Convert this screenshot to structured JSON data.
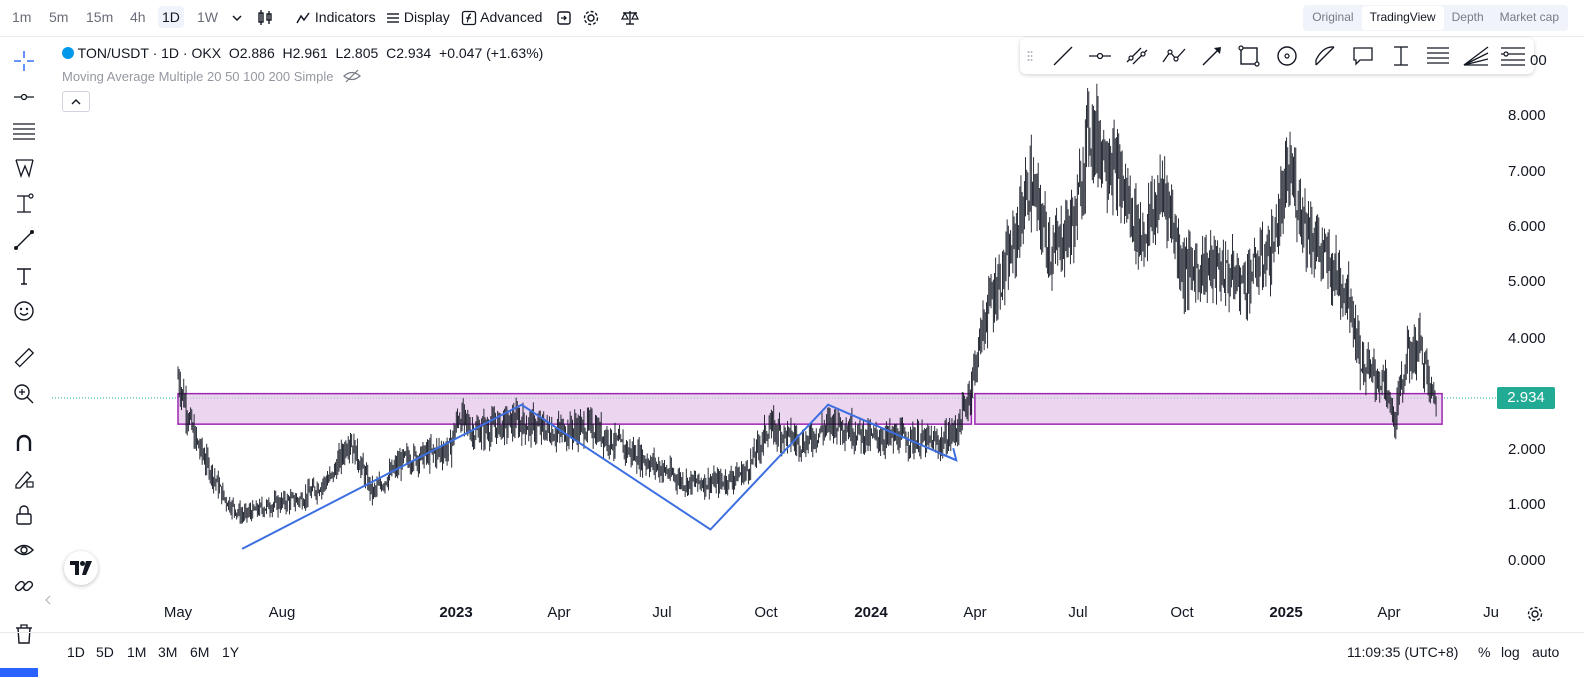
{
  "toolbar": {
    "intervals": [
      "1m",
      "5m",
      "15m",
      "4h",
      "1D",
      "1W"
    ],
    "active_interval": "1D",
    "indicators_label": "Indicators",
    "display_label": "Display",
    "advanced_label": "Advanced"
  },
  "view_tabs": [
    "Original",
    "TradingView",
    "Depth",
    "Market cap"
  ],
  "active_view": "TradingView",
  "legend": {
    "symbol": "TON/USDT · 1D · OKX",
    "open": "O2.886",
    "high": "H2.961",
    "low": "L2.805",
    "close": "C2.934",
    "change": "+0.047 (+1.63%)",
    "indicator": "Moving Average Multiple 20 50 100 200 Simple"
  },
  "price_axis": [
    "8.000",
    "7.000",
    "6.000",
    "5.000",
    "4.000",
    "2.000",
    "1.000",
    "0.000"
  ],
  "price_axis_partial_top": "00",
  "current_price": "2.934",
  "time_axis": [
    {
      "label": "May",
      "bold": false
    },
    {
      "label": "Aug",
      "bold": false
    },
    {
      "label": "2023",
      "bold": true
    },
    {
      "label": "Apr",
      "bold": false
    },
    {
      "label": "Jul",
      "bold": false
    },
    {
      "label": "Oct",
      "bold": false
    },
    {
      "label": "2024",
      "bold": true
    },
    {
      "label": "Apr",
      "bold": false
    },
    {
      "label": "Jul",
      "bold": false
    },
    {
      "label": "Oct",
      "bold": false
    },
    {
      "label": "2025",
      "bold": true
    },
    {
      "label": "Apr",
      "bold": false
    },
    {
      "label": "Ju",
      "bold": false
    }
  ],
  "bottom": {
    "ranges": [
      "1D",
      "5D",
      "1M",
      "3M",
      "6M",
      "1Y"
    ],
    "clock": "11:09:35 (UTC+8)",
    "percent_label": "%",
    "log_label": "log",
    "auto_label": "auto"
  },
  "chart_data": {
    "type": "candlestick",
    "y_range": [
      0,
      8.3
    ],
    "current_price": 2.934,
    "approx_path": [
      [
        "2022-05-01",
        3.3
      ],
      [
        "2022-05-15",
        2.2
      ],
      [
        "2022-06-10",
        1.1
      ],
      [
        "2022-06-25",
        0.8
      ],
      [
        "2022-07-20",
        1.0
      ],
      [
        "2022-08-15",
        1.1
      ],
      [
        "2022-09-10",
        1.5
      ],
      [
        "2022-09-25",
        2.2
      ],
      [
        "2022-10-15",
        1.2
      ],
      [
        "2022-11-10",
        1.8
      ],
      [
        "2022-12-20",
        2.0
      ],
      [
        "2022-12-28",
        2.6
      ],
      [
        "2023-01-10",
        2.3
      ],
      [
        "2023-02-15",
        2.5
      ],
      [
        "2023-03-20",
        2.3
      ],
      [
        "2023-04-20",
        2.4
      ],
      [
        "2023-05-20",
        2.0
      ],
      [
        "2023-06-15",
        1.7
      ],
      [
        "2023-07-10",
        1.4
      ],
      [
        "2023-08-10",
        1.4
      ],
      [
        "2023-09-01",
        1.6
      ],
      [
        "2023-09-20",
        2.4
      ],
      [
        "2023-10-20",
        2.1
      ],
      [
        "2023-11-15",
        2.5
      ],
      [
        "2023-12-15",
        2.2
      ],
      [
        "2024-01-15",
        2.2
      ],
      [
        "2024-02-15",
        2.1
      ],
      [
        "2024-03-01",
        2.4
      ],
      [
        "2024-03-10",
        3.0
      ],
      [
        "2024-03-25",
        4.5
      ],
      [
        "2024-04-15",
        5.5
      ],
      [
        "2024-05-01",
        6.8
      ],
      [
        "2024-05-20",
        5.5
      ],
      [
        "2024-06-10",
        6.2
      ],
      [
        "2024-06-20",
        7.8
      ],
      [
        "2024-07-10",
        7.2
      ],
      [
        "2024-08-05",
        5.8
      ],
      [
        "2024-08-25",
        6.7
      ],
      [
        "2024-09-10",
        5.2
      ],
      [
        "2024-10-05",
        5.3
      ],
      [
        "2024-11-01",
        5.0
      ],
      [
        "2024-11-25",
        5.6
      ],
      [
        "2024-12-10",
        7.0
      ],
      [
        "2024-12-25",
        6.0
      ],
      [
        "2025-01-10",
        5.4
      ],
      [
        "2025-01-30",
        4.8
      ],
      [
        "2025-02-10",
        3.5
      ],
      [
        "2025-03-01",
        3.2
      ],
      [
        "2025-03-10",
        2.5
      ],
      [
        "2025-03-20",
        3.6
      ],
      [
        "2025-04-01",
        3.9
      ],
      [
        "2025-04-10",
        3.0
      ],
      [
        "2025-04-15",
        2.934
      ]
    ],
    "drawings": {
      "rectangles": [
        {
          "from": "2022-05-01",
          "to": "2024-03-12",
          "top": 3.0,
          "bottom": 2.45,
          "color": "#e1bee7"
        },
        {
          "from": "2024-03-15",
          "to": "2025-04-20",
          "top": 3.0,
          "bottom": 2.45,
          "color": "#e1bee7"
        }
      ],
      "pattern_line": [
        [
          "2022-06-25",
          0.2
        ],
        [
          "2023-02-20",
          2.8
        ],
        [
          "2023-08-01",
          0.55
        ],
        [
          "2023-11-10",
          2.8
        ],
        [
          "2024-02-28",
          1.8
        ]
      ],
      "pattern_color": "#3d6fe0"
    }
  }
}
